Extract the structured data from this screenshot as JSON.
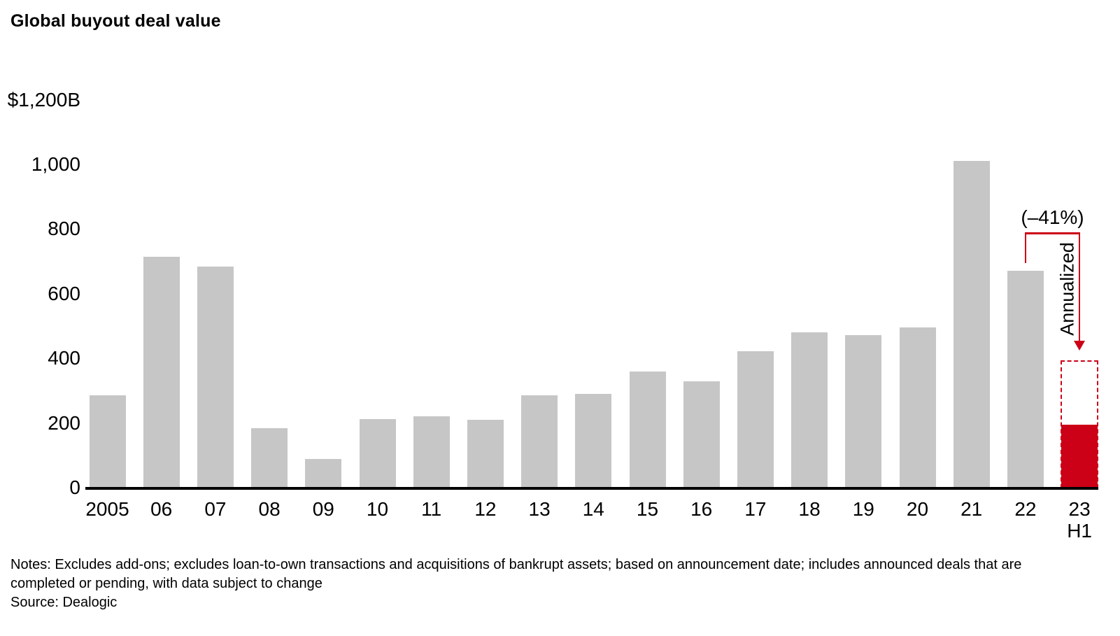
{
  "title": "Global buyout deal value",
  "colors": {
    "bar": "#c6c6c6",
    "highlight": "#cc0016",
    "axis": "#000000",
    "text": "#000000"
  },
  "chart_data": {
    "type": "bar",
    "title": "Global buyout deal value",
    "unit": "$B",
    "xlabel": "",
    "ylabel": "",
    "ylim": [
      0,
      1200
    ],
    "grid": false,
    "legend": false,
    "y_ticks": [
      {
        "value": 0,
        "label": "0"
      },
      {
        "value": 200,
        "label": "200"
      },
      {
        "value": 400,
        "label": "400"
      },
      {
        "value": 600,
        "label": "600"
      },
      {
        "value": 800,
        "label": "800"
      },
      {
        "value": 1000,
        "label": "1,000"
      },
      {
        "value": 1200,
        "label": "$1,200B"
      }
    ],
    "categories": [
      "2005",
      "06",
      "07",
      "08",
      "09",
      "10",
      "11",
      "12",
      "13",
      "14",
      "15",
      "16",
      "17",
      "18",
      "19",
      "20",
      "21",
      "22",
      "23\nH1"
    ],
    "values": [
      285,
      715,
      685,
      185,
      88,
      212,
      220,
      210,
      285,
      290,
      360,
      330,
      422,
      480,
      472,
      495,
      1010,
      670,
      195
    ],
    "highlight_index": 18,
    "annualized": {
      "value": 395,
      "label": "Annualized",
      "pct_label": "(–41%)",
      "from_category": "22",
      "to_category": "23\nH1"
    }
  },
  "notes": {
    "line1": "Notes: Excludes add-ons; excludes loan-to-own transactions and acquisitions of bankrupt assets; based on announcement date; includes announced deals that are",
    "line2": "completed or pending, with data subject to change",
    "source": "Source: Dealogic"
  }
}
